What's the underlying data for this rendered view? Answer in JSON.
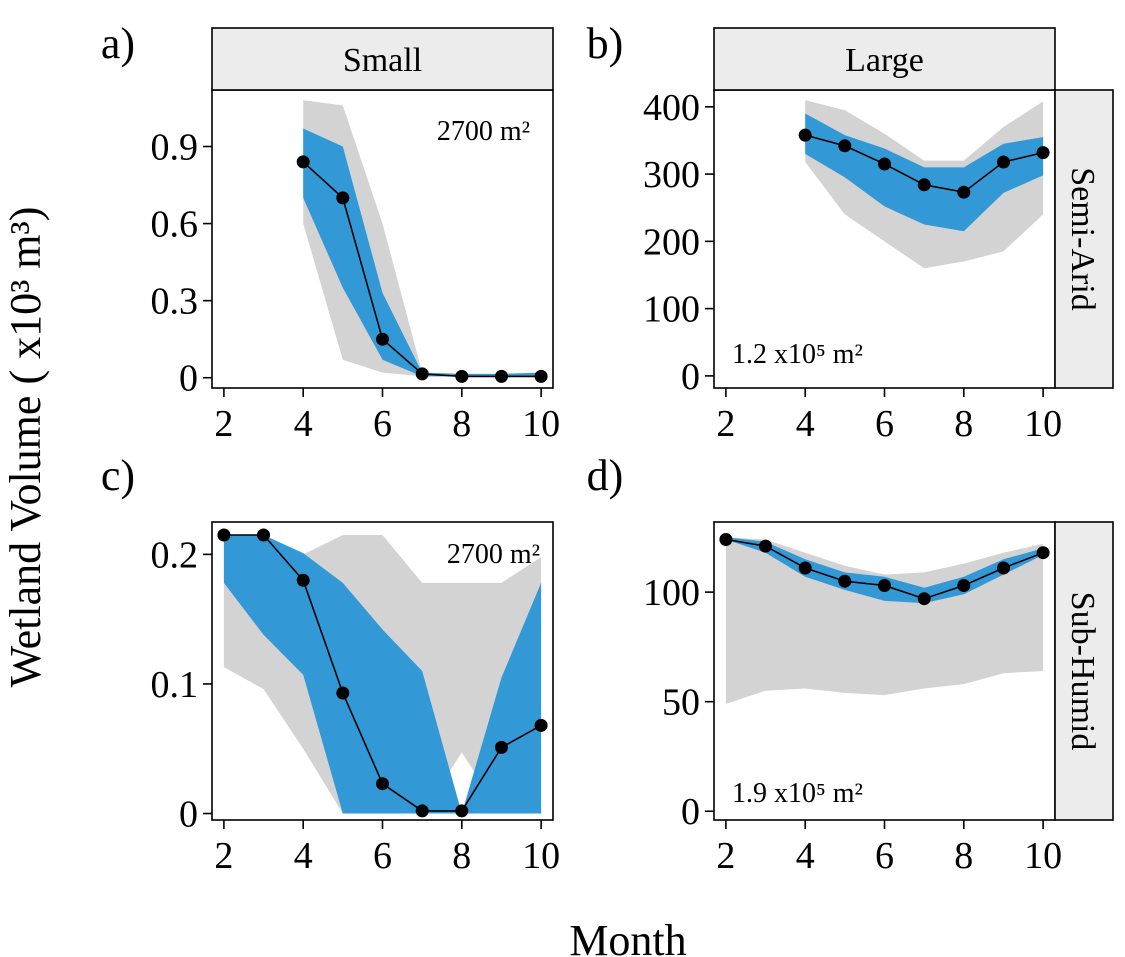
{
  "figure": {
    "ylabel": "Wetland Volume ( x10³ m³)",
    "xlabel": "Month",
    "columns": [
      "Small",
      "Large"
    ],
    "rows": [
      "Semi-Arid",
      "Sub-Humid"
    ]
  },
  "colors": {
    "outer_band": "#d3d3d3",
    "inner_band": "#3399d6",
    "line": "#000000",
    "strip_fill": "#ececec"
  },
  "chart_data": [
    {
      "type": "line",
      "panel_label": "a)",
      "column": "Small",
      "row": "Semi-Arid",
      "annotation": "2700 m²",
      "x": [
        4,
        5,
        6,
        7,
        8,
        9,
        10
      ],
      "series": [
        {
          "values": [
            0.84,
            0.7,
            0.15,
            0.015,
            0.005,
            0.005,
            0.005
          ]
        }
      ],
      "band_outer": {
        "x": [
          4,
          5,
          6,
          7,
          8,
          9,
          10
        ],
        "upper": [
          1.08,
          1.06,
          0.6,
          0.02,
          0.005,
          0.005,
          0.005
        ],
        "lower": [
          0.6,
          0.07,
          0.02,
          0.005,
          0.005,
          0.005,
          0.005
        ]
      },
      "band_inner": {
        "x": [
          4,
          5,
          6,
          7,
          8,
          9,
          10
        ],
        "upper": [
          0.97,
          0.9,
          0.33,
          0.02,
          0.015,
          0.015,
          0.02
        ],
        "lower": [
          0.7,
          0.35,
          0.07,
          0.005,
          0.005,
          0.005,
          0.005
        ]
      },
      "xlim": [
        1.7,
        10.3
      ],
      "ylim": [
        -0.04,
        1.12
      ],
      "xticks": [
        2,
        4,
        6,
        8,
        10
      ],
      "yticks": [
        0,
        0.3,
        0.6,
        0.9
      ],
      "ytick_labels": [
        "0",
        "0.3",
        "0.6",
        "0.9"
      ]
    },
    {
      "type": "line",
      "panel_label": "b)",
      "column": "Large",
      "row": "Semi-Arid",
      "annotation": "1.2 x10⁵ m²",
      "x": [
        4,
        5,
        6,
        7,
        8,
        9,
        10
      ],
      "series": [
        {
          "values": [
            358,
            342,
            315,
            284,
            273,
            318,
            332
          ]
        }
      ],
      "band_outer": {
        "x": [
          4,
          5,
          6,
          7,
          8,
          9,
          10
        ],
        "upper": [
          410,
          395,
          360,
          320,
          320,
          370,
          408
        ],
        "lower": [
          318,
          240,
          200,
          160,
          170,
          185,
          240
        ]
      },
      "band_inner": {
        "x": [
          4,
          5,
          6,
          7,
          8,
          9,
          10
        ],
        "upper": [
          390,
          358,
          338,
          310,
          310,
          345,
          355
        ],
        "lower": [
          330,
          295,
          252,
          225,
          215,
          272,
          298
        ]
      },
      "xlim": [
        1.7,
        10.3
      ],
      "ylim": [
        -18,
        425
      ],
      "xticks": [
        2,
        4,
        6,
        8,
        10
      ],
      "yticks": [
        0,
        100,
        200,
        300,
        400
      ],
      "ytick_labels": [
        "0",
        "100",
        "200",
        "300",
        "400"
      ]
    },
    {
      "type": "line",
      "panel_label": "c)",
      "column": "Small",
      "row": "Sub-Humid",
      "annotation": "2700 m²",
      "x": [
        2,
        3,
        4,
        5,
        6,
        7,
        8,
        9,
        10
      ],
      "series": [
        {
          "values": [
            0.215,
            0.215,
            0.18,
            0.093,
            0.023,
            0.002,
            0.002,
            0.051,
            0.068
          ]
        }
      ],
      "band_outer": {
        "x": [
          2,
          3,
          4,
          5,
          6,
          7,
          8,
          9,
          10
        ],
        "upper": [
          0.215,
          0.215,
          0.2,
          0.215,
          0.215,
          0.178,
          0.178,
          0.178,
          0.198
        ],
        "lower": [
          0.113,
          0.096,
          0.05,
          0.0,
          0.0,
          0.0,
          0.047,
          0.0,
          0.0
        ]
      },
      "band_inner": {
        "x": [
          2,
          3,
          4,
          5,
          6,
          7,
          8,
          9,
          10
        ],
        "upper": [
          0.215,
          0.215,
          0.201,
          0.178,
          0.142,
          0.11,
          0.0,
          0.105,
          0.178
        ],
        "lower": [
          0.178,
          0.138,
          0.107,
          0.0,
          0.0,
          0.0,
          0.0,
          0.0,
          0.0
        ]
      },
      "xlim": [
        1.7,
        10.3
      ],
      "ylim": [
        -0.005,
        0.225
      ],
      "xticks": [
        2,
        4,
        6,
        8,
        10
      ],
      "yticks": [
        0,
        0.1,
        0.2
      ],
      "ytick_labels": [
        "0",
        "0.1",
        "0.2"
      ]
    },
    {
      "type": "line",
      "panel_label": "d)",
      "column": "Large",
      "row": "Sub-Humid",
      "annotation": "1.9 x10⁵ m²",
      "x": [
        2,
        3,
        4,
        5,
        6,
        7,
        8,
        9,
        10
      ],
      "series": [
        {
          "values": [
            124,
            121,
            111,
            105,
            103,
            97,
            103,
            111,
            118
          ]
        }
      ],
      "band_outer": {
        "x": [
          2,
          3,
          4,
          5,
          6,
          7,
          8,
          9,
          10
        ],
        "upper": [
          125,
          124,
          118,
          112,
          108,
          109,
          113,
          118,
          122
        ],
        "lower": [
          49,
          55,
          56,
          54,
          53,
          56,
          58,
          63,
          64
        ]
      },
      "band_inner": {
        "x": [
          2,
          3,
          4,
          5,
          6,
          7,
          8,
          9,
          10
        ],
        "upper": [
          125,
          123,
          115,
          109,
          107,
          102,
          107,
          115,
          120
        ],
        "lower": [
          124,
          118,
          107,
          101,
          96,
          95,
          99,
          108,
          117
        ]
      },
      "xlim": [
        1.7,
        10.3
      ],
      "ylim": [
        -4,
        132
      ],
      "xticks": [
        2,
        4,
        6,
        8,
        10
      ],
      "yticks": [
        0,
        50,
        100
      ],
      "ytick_labels": [
        "0",
        "50",
        "100"
      ]
    }
  ]
}
